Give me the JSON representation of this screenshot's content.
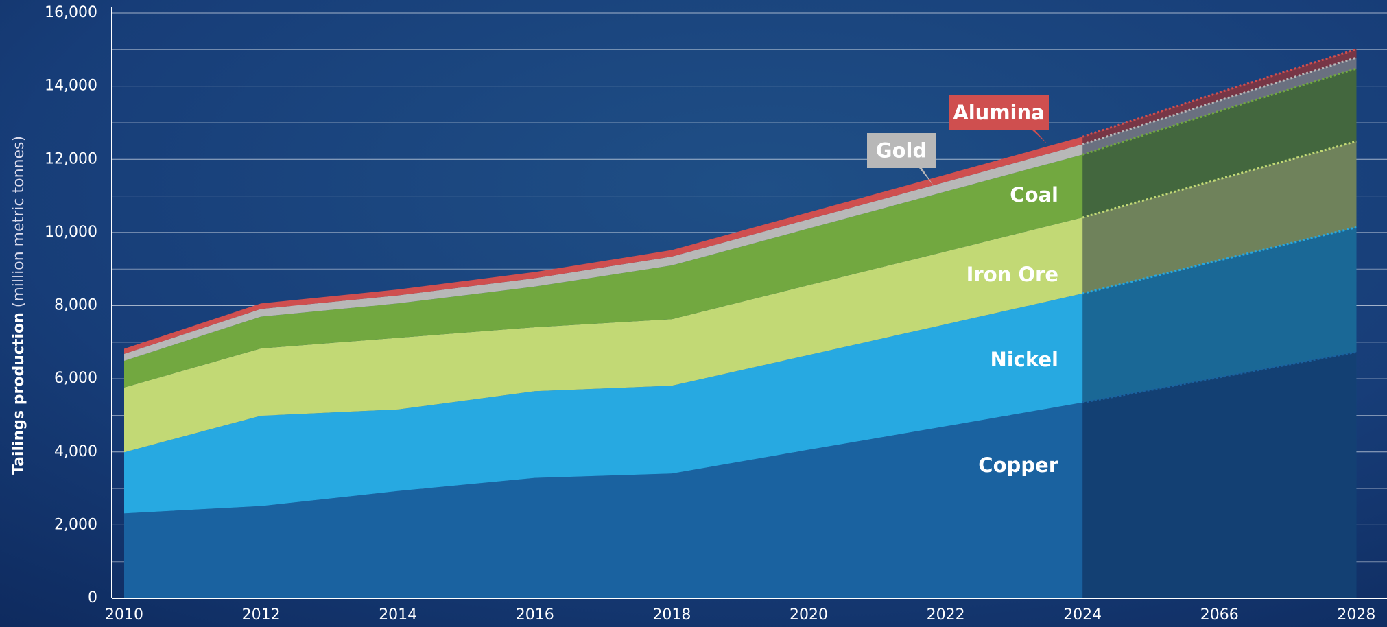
{
  "chart_data": {
    "type": "stacked-area",
    "ylabel": "Tailings production",
    "ylabel_unit": "(million metric tonnes)",
    "categories": [
      "2010",
      "2012",
      "2014",
      "2016",
      "2018",
      "2020",
      "2022",
      "2024",
      "2066",
      "2028"
    ],
    "forecast_from": "2024",
    "series": [
      {
        "name": "Copper",
        "color": "#1a62a0",
        "values": [
          2320,
          2520,
          2930,
          3290,
          3410,
          4060,
          4700,
          5350,
          6040,
          6730
        ]
      },
      {
        "name": "Nickel",
        "color": "#27a9e1",
        "values": [
          1670,
          2470,
          2230,
          2370,
          2400,
          2590,
          2790,
          2980,
          3200,
          3410
        ]
      },
      {
        "name": "Iron Ore",
        "color": "#c2d975",
        "values": [
          1770,
          1840,
          1960,
          1750,
          1820,
          1910,
          1990,
          2080,
          2220,
          2350
        ]
      },
      {
        "name": "Coal",
        "color": "#72a840",
        "values": [
          730,
          870,
          940,
          1110,
          1470,
          1550,
          1640,
          1720,
          1860,
          1990
        ]
      },
      {
        "name": "Gold",
        "color": "#b8b8b8",
        "values": [
          190,
          210,
          220,
          230,
          240,
          250,
          260,
          280,
          290,
          300
        ]
      },
      {
        "name": "Alumina",
        "color": "#cf4f4f",
        "values": [
          140,
          150,
          160,
          170,
          180,
          190,
          200,
          210,
          220,
          230
        ]
      }
    ],
    "ylim": [
      0,
      16000
    ],
    "yticks": [
      0,
      {
        "value": 2000,
        "label": "2,000"
      },
      {
        "value": 4000,
        "label": "4,000"
      },
      {
        "value": 6000,
        "label": "6,000"
      },
      {
        "value": 8000,
        "label": "8,000"
      },
      {
        "value": 10000,
        "label": "10,000"
      },
      {
        "value": 12000,
        "label": "12,000"
      },
      {
        "value": 14000,
        "label": "14,000"
      },
      {
        "value": 16000,
        "label": "16,000"
      }
    ],
    "minor_yticks": [
      1000,
      3000,
      5000,
      7000,
      9000,
      11000,
      13000,
      15000
    ],
    "grid": true
  }
}
